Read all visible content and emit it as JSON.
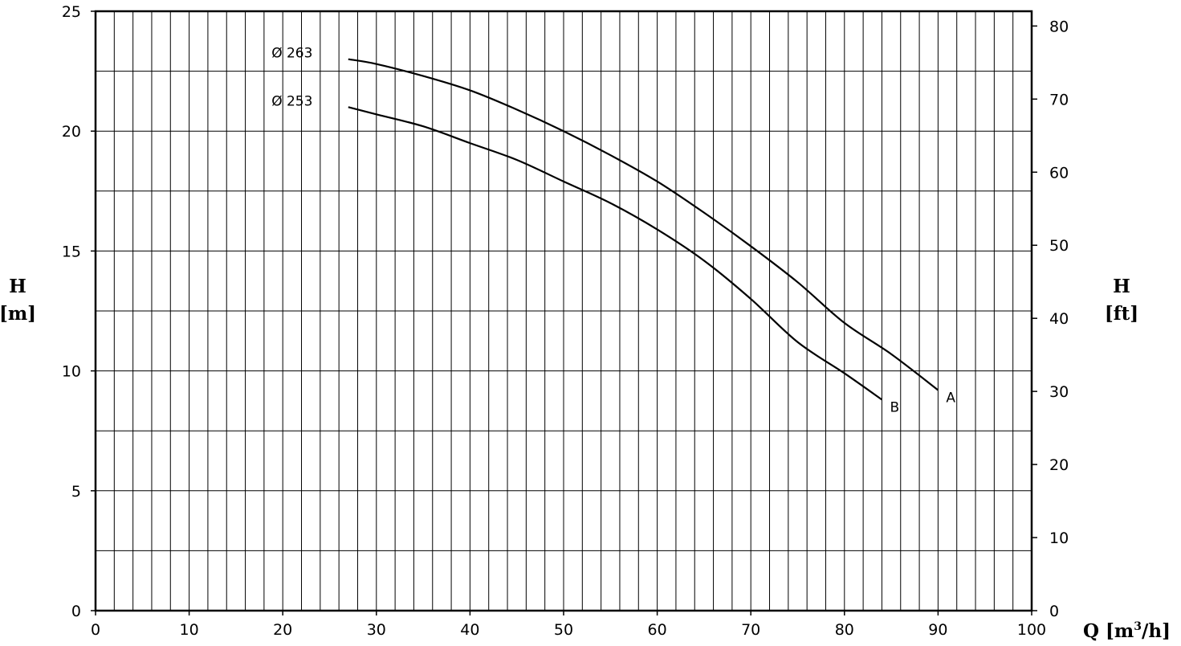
{
  "chart_data": {
    "type": "line",
    "title": "",
    "xlabel": "Q [m³/h]",
    "ylabel_left": "H\n[m]",
    "ylabel_right": "H\n[ft]",
    "xlim": [
      0,
      100
    ],
    "ylim_left": [
      0,
      25
    ],
    "ylim_right_ft": [
      0,
      82.02
    ],
    "x_ticks": [
      0,
      10,
      20,
      30,
      40,
      50,
      60,
      70,
      80,
      90,
      100
    ],
    "y_ticks_left": [
      0,
      5,
      10,
      15,
      20,
      25
    ],
    "y_ticks_right": [
      0,
      10,
      20,
      30,
      40,
      50,
      60,
      70,
      80
    ],
    "grid": true,
    "x_minor_step": 2,
    "y_minor_step": 2.5,
    "series": [
      {
        "name": "Ø 263",
        "end_label": "A",
        "x": [
          27,
          30,
          35,
          40,
          45,
          50,
          55,
          60,
          65,
          70,
          75,
          80,
          85,
          90
        ],
        "values": [
          23.0,
          22.8,
          22.3,
          21.7,
          20.9,
          20.0,
          19.0,
          17.9,
          16.6,
          15.2,
          13.7,
          12.0,
          10.7,
          9.2
        ]
      },
      {
        "name": "Ø 253",
        "end_label": "B",
        "x": [
          27,
          30,
          35,
          40,
          45,
          50,
          55,
          60,
          65,
          70,
          75,
          80,
          84
        ],
        "values": [
          21.0,
          20.7,
          20.2,
          19.5,
          18.8,
          17.9,
          17.0,
          15.9,
          14.6,
          13.0,
          11.2,
          9.9,
          8.8
        ]
      }
    ],
    "x_label_parts": {
      "main": "Q [m",
      "sup": "3",
      "tail": "/h]"
    },
    "left_label_parts": {
      "line1": "H",
      "line2": "[m]"
    },
    "right_label_parts": {
      "line1": "H",
      "line2": "[ft]"
    }
  }
}
